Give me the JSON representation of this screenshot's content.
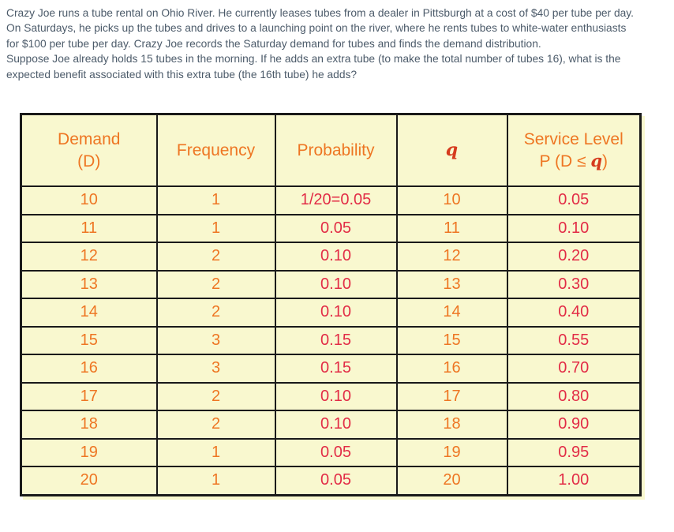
{
  "problem": {
    "lines": [
      "Crazy Joe runs a tube rental on Ohio River. He currently leases tubes from a dealer in Pittsburgh at a cost of $40 per tube per day.",
      "On Saturdays, he picks up the tubes and drives to a launching point on the river, where he rents tubes to white-water enthusiasts",
      "for $100 per tube per day. Crazy Joe records the Saturday demand for tubes and finds the demand distribution.",
      "Suppose Joe already holds 15 tubes in the morning. If he adds an extra tube (to make the total number of tubes 16), what is the",
      "expected benefit associated with this extra tube (the 16th tube) he adds?"
    ]
  },
  "table": {
    "headers": {
      "demand_line1": "Demand",
      "demand_line2": "(D)",
      "frequency": "Frequency",
      "probability": "Probability",
      "q": "q",
      "service_line1": "Service Level",
      "service_line2_prefix": "P (D ≤ ",
      "service_line2_q": "q",
      "service_line2_suffix": ")"
    },
    "columns": [
      "demand",
      "frequency",
      "probability",
      "q",
      "service_level"
    ],
    "rows": [
      [
        "10",
        "1",
        "1/20=0.05",
        "10",
        "0.05"
      ],
      [
        "11",
        "1",
        "0.05",
        "11",
        "0.10"
      ],
      [
        "12",
        "2",
        "0.10",
        "12",
        "0.20"
      ],
      [
        "13",
        "2",
        "0.10",
        "13",
        "0.30"
      ],
      [
        "14",
        "2",
        "0.10",
        "14",
        "0.40"
      ],
      [
        "15",
        "3",
        "0.15",
        "15",
        "0.55"
      ],
      [
        "16",
        "3",
        "0.15",
        "16",
        "0.70"
      ],
      [
        "17",
        "2",
        "0.10",
        "17",
        "0.80"
      ],
      [
        "18",
        "2",
        "0.10",
        "18",
        "0.90"
      ],
      [
        "19",
        "1",
        "0.05",
        "19",
        "0.95"
      ],
      [
        "20",
        "1",
        "0.05",
        "20",
        "1.00"
      ]
    ]
  },
  "colors": {
    "orange": "#EE7623",
    "red": "#E22C46",
    "q_red": "#D63B1E",
    "cell_bg": "#F9F8CF",
    "border": "#1A1A1A",
    "paragraph_text": "#4C5B6A"
  }
}
